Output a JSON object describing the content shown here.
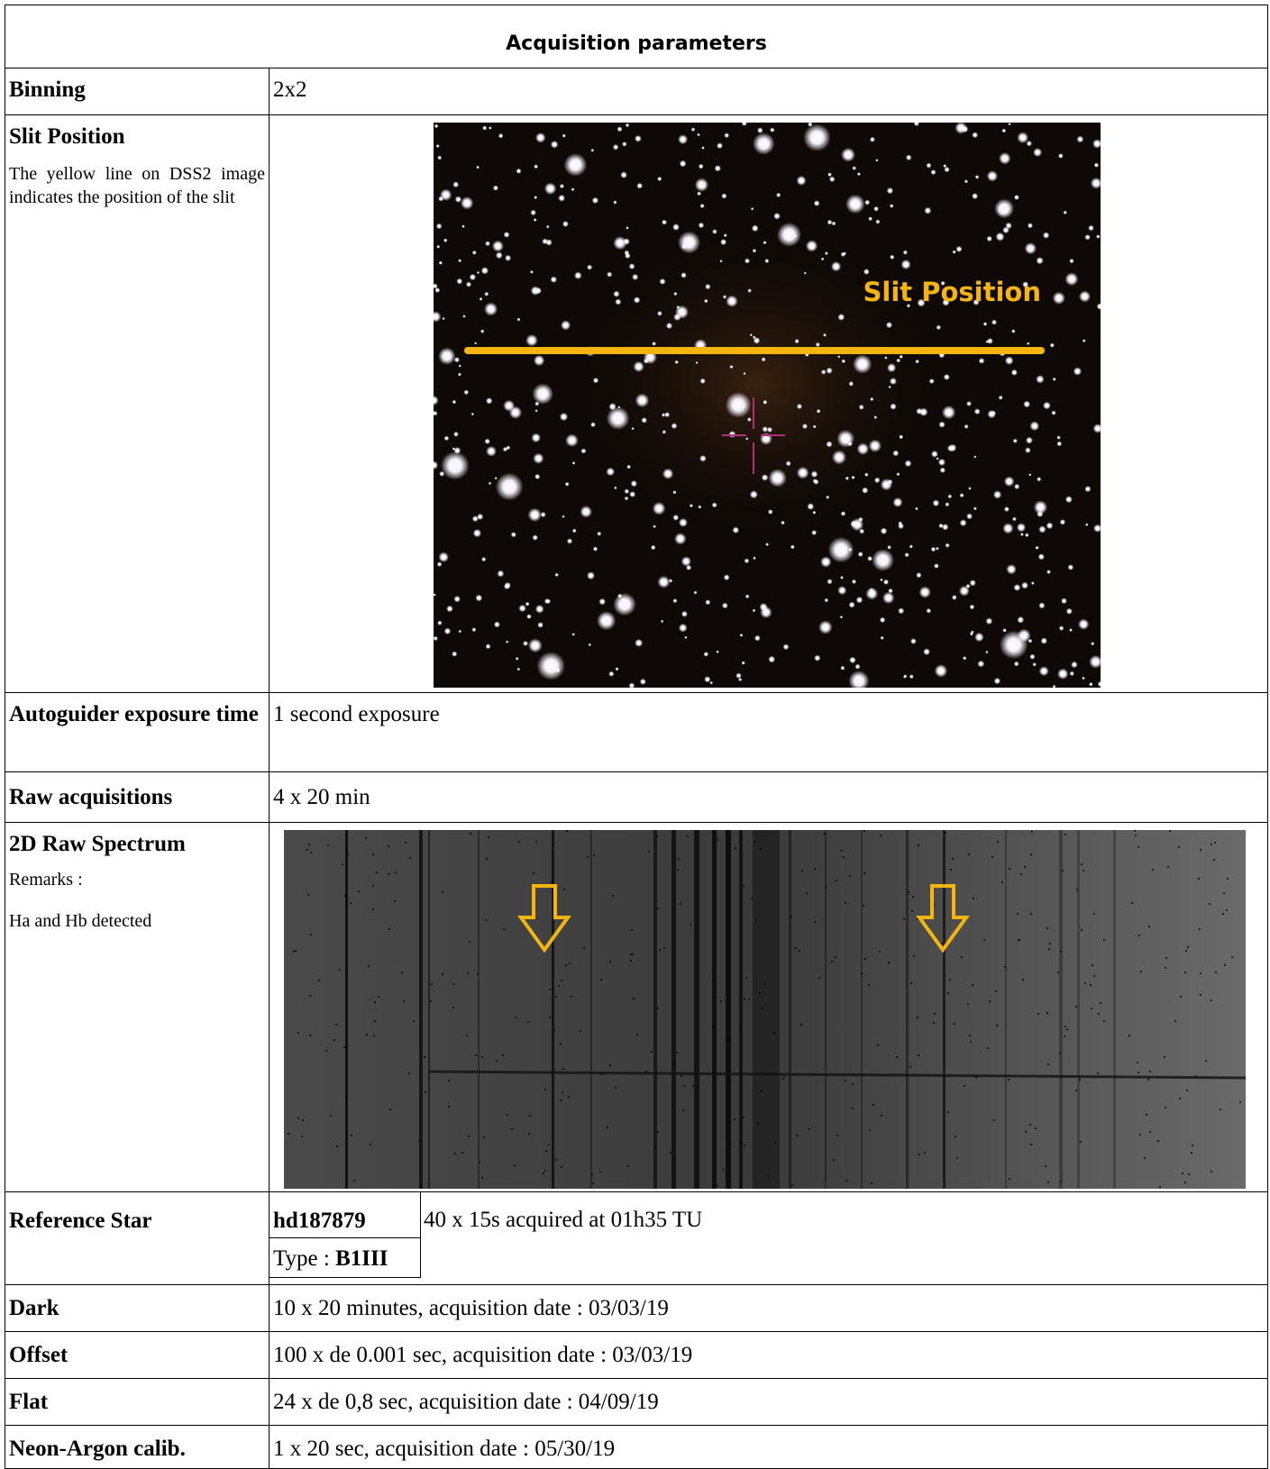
{
  "title": "Acquisition parameters",
  "rows": [
    {
      "label": "Binning",
      "value": "2x2"
    },
    {
      "label": "Slit Position",
      "note": "The yellow line on DSS2 image indicates the position of the slit",
      "image_label": "Slit Position"
    },
    {
      "label": "Autoguider exposure time",
      "value": "1 second exposure"
    },
    {
      "label": "Raw acquisitions",
      "value": "4 x 20 min"
    },
    {
      "label": "2D Raw Spectrum",
      "remarks": [
        "Remarks :",
        "Ha and Hb detected"
      ]
    },
    {
      "label": "Reference Star",
      "name": "hd187879",
      "type_prefix": "Type :",
      "type": "B1III",
      "value": "40 x 15s acquired at 01h35 TU"
    },
    {
      "label": "Dark",
      "value": "10 x 20 minutes, acquisition date : 03/03/19"
    },
    {
      "label": "Offset",
      "value": "100 x de 0.001 sec, acquisition date : 03/03/19"
    },
    {
      "label": "Flat",
      "value": "24 x de 0,8 sec, acquisition date : 04/09/19"
    },
    {
      "label": "Neon-Argon calib.",
      "value": "1 x 20 sec, acquisition date : 05/30/19"
    }
  ]
}
